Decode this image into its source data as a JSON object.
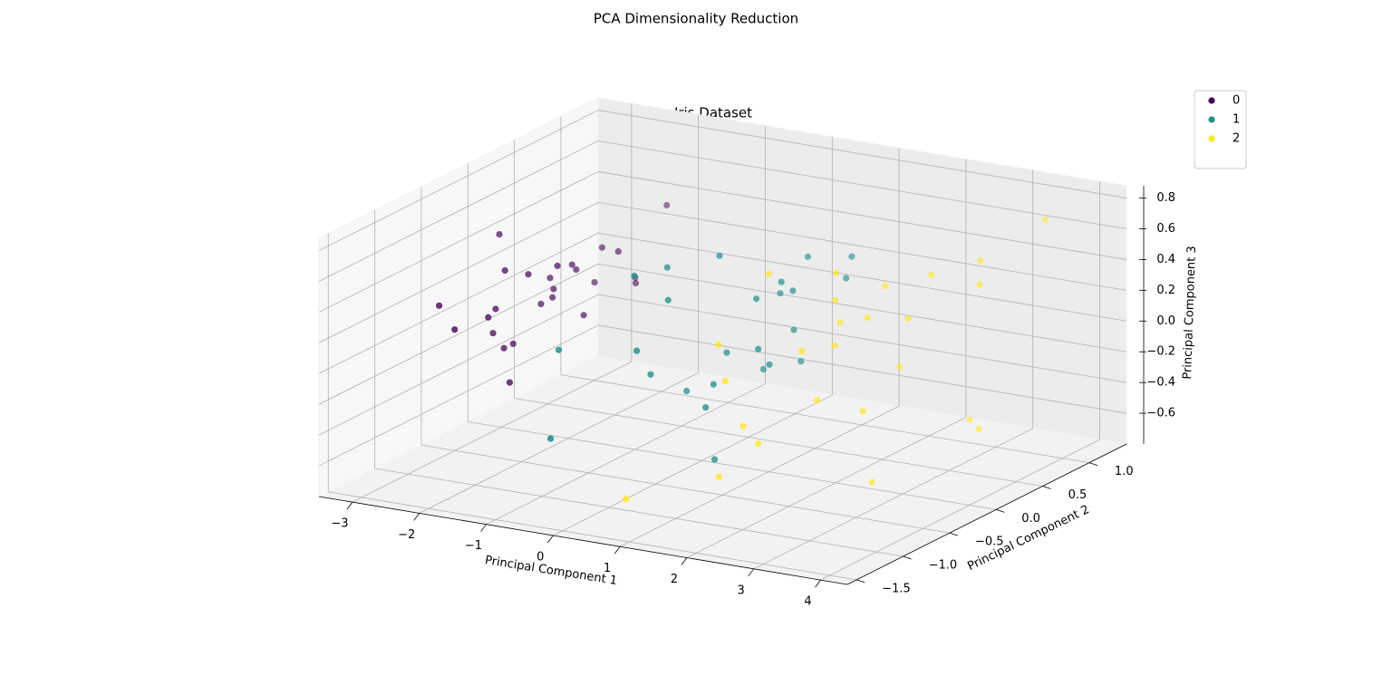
{
  "chart_data": {
    "type": "scatter3d",
    "title": "PCA Dimensionality Reduction",
    "subtitle": "Iris Dataset",
    "x_label": "Principal Component 1",
    "y_label": "Principal Component 2",
    "z_label": "Principal Component 3",
    "xlim": [
      -3.5,
      4.4
    ],
    "ylim": [
      -1.6,
      1.4
    ],
    "zlim": [
      -0.8,
      0.88
    ],
    "xticks": [
      {
        "value": -3,
        "label": "−3"
      },
      {
        "value": -2,
        "label": "−2"
      },
      {
        "value": -1,
        "label": "−1"
      },
      0,
      1,
      2,
      3,
      4
    ],
    "yticks": [
      {
        "value": -1.5,
        "label": "−1.5"
      },
      {
        "value": -1.0,
        "label": "−1.0"
      },
      {
        "value": -0.5,
        "label": "−0.5"
      },
      {
        "value": 0.0,
        "label": "0.0"
      },
      0.5,
      {
        "value": 1.0,
        "label": "1.0"
      }
    ],
    "zticks": [
      {
        "value": -0.6,
        "label": "−0.6"
      },
      {
        "value": -0.4,
        "label": "−0.4"
      },
      {
        "value": -0.2,
        "label": "−0.2"
      },
      {
        "value": 0.0,
        "label": "0.0"
      },
      0.2,
      0.4,
      0.6,
      0.8
    ],
    "grid": true,
    "legend": "upper right",
    "series": [
      {
        "name": "0",
        "color": "#440154",
        "x": [
          -2.68,
          -2.71,
          -2.89,
          -2.75,
          -2.73,
          -2.28,
          -2.82,
          -2.63,
          -2.89,
          -2.67,
          -2.51,
          -2.61,
          -2.79,
          -3.22,
          -2.64,
          -2.39,
          -2.62,
          -2.65,
          -2.2,
          -2.59,
          -2.31,
          -2.54,
          -3.21,
          -2.3,
          -2.36
        ],
        "y": [
          0.32,
          -0.18,
          -0.14,
          -0.32,
          0.33,
          0.74,
          -0.09,
          0.16,
          -0.58,
          -0.11,
          0.65,
          0.01,
          -0.24,
          -0.51,
          1.18,
          1.34,
          0.81,
          0.31,
          0.87,
          0.51,
          0.39,
          0.43,
          0.13,
          0.1,
          -0.37
        ],
        "z": [
          -0.03,
          -0.21,
          0.02,
          0.03,
          0.09,
          0.17,
          0.26,
          -0.02,
          0.02,
          -0.2,
          -0.02,
          0.22,
          -0.1,
          0.13,
          -0.16,
          0.28,
          0.15,
          0.03,
          -0.07,
          0.1,
          -0.14,
          0.16,
          0.4,
          0.27,
          -0.35
        ]
      },
      {
        "name": "1",
        "color": "#21918c",
        "x": [
          1.28,
          0.93,
          1.46,
          0.18,
          1.09,
          0.64,
          1.09,
          -0.75,
          1.04,
          -0.01,
          -0.51,
          0.51,
          0.26,
          0.98,
          -0.17,
          0.93,
          0.66,
          0.23,
          0.94,
          0.04,
          1.12,
          0.36,
          1.3,
          0.92,
          0.71
        ],
        "y": [
          0.69,
          0.32,
          0.5,
          -0.83,
          0.07,
          -0.42,
          0.28,
          -1.0,
          0.23,
          -0.72,
          -1.26,
          -0.1,
          -0.55,
          -0.12,
          -0.25,
          0.47,
          -0.35,
          -0.33,
          -0.54,
          -0.58,
          -0.08,
          -0.07,
          -0.33,
          0.18,
          0.15
        ],
        "z": [
          0.41,
          0.02,
          0.34,
          0.18,
          0.42,
          -0.28,
          -0.16,
          0.17,
          0.31,
          0.62,
          -0.31,
          -0.03,
          0.43,
          0.36,
          0.52,
          0.45,
          -0.15,
          -0.23,
          -0.56,
          -0.06,
          -0.07,
          0.58,
          0.12,
          0.3,
          -0.2
        ]
      },
      {
        "name": "2",
        "color": "#fde725",
        "x": [
          2.53,
          1.41,
          2.61,
          1.97,
          2.35,
          3.4,
          0.52,
          2.93,
          2.32,
          2.92,
          1.66,
          1.8,
          2.17,
          1.34,
          1.59,
          1.9,
          1.95,
          3.49,
          3.79,
          1.3,
          2.43,
          1.2,
          3.5,
          1.39,
          2.28
        ],
        "y": [
          0.01,
          -0.57,
          0.34,
          -0.18,
          0.04,
          0.55,
          -1.19,
          0.36,
          -0.24,
          0.78,
          0.24,
          -0.22,
          0.22,
          -0.78,
          -0.54,
          0.12,
          0.04,
          1.18,
          0.26,
          -0.76,
          0.38,
          -0.61,
          0.46,
          -0.28,
          0.33
        ],
        "z": [
          -0.76,
          -0.3,
          0.21,
          -0.21,
          -0.32,
          0.58,
          -0.65,
          0.51,
          0.19,
          -0.56,
          0.29,
          0.11,
          0.22,
          -0.57,
          -0.41,
          0.2,
          0.55,
          0.66,
          0.54,
          0.28,
          -0.13,
          -0.01,
          -0.48,
          0.6,
          0.4
        ]
      }
    ]
  }
}
